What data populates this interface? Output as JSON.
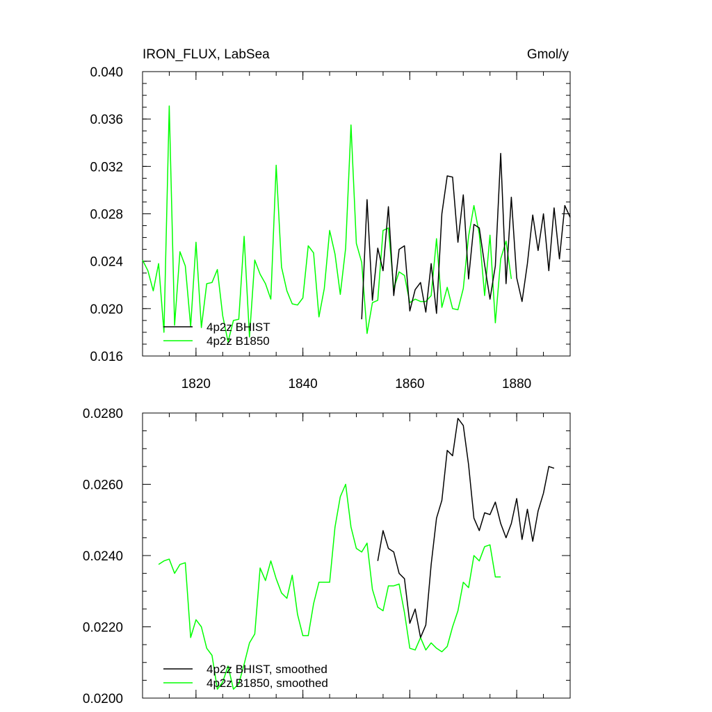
{
  "colors": {
    "bhist": "#000000",
    "b1850": "#00ff00",
    "frame": "#000000"
  },
  "chart_data": [
    {
      "type": "line",
      "title": "IRON_FLUX, LabSea",
      "units": "Gmol/y",
      "xlim": [
        1810,
        1890
      ],
      "ylim": [
        0.016,
        0.04
      ],
      "x_ticks": [
        1820,
        1840,
        1860,
        1880
      ],
      "x_tick_labels": [
        "1820",
        "1840",
        "1860",
        "1880"
      ],
      "y_ticks": [
        0.016,
        0.02,
        0.024,
        0.028,
        0.032,
        0.036,
        0.04
      ],
      "y_tick_labels": [
        "0.016",
        "0.020",
        "0.024",
        "0.028",
        "0.032",
        "0.036",
        "0.040"
      ],
      "legend_position": "bottom-left",
      "series": [
        {
          "name": "4p2z BHIST",
          "color": "#000000",
          "x": [
            1851,
            1852,
            1853,
            1854,
            1855,
            1856,
            1857,
            1858,
            1859,
            1860,
            1861,
            1862,
            1863,
            1864,
            1865,
            1866,
            1867,
            1868,
            1869,
            1870,
            1871,
            1872,
            1873,
            1874,
            1875,
            1876,
            1877,
            1878,
            1879,
            1880,
            1881,
            1882,
            1883,
            1884,
            1885,
            1886,
            1887,
            1888,
            1889,
            1890
          ],
          "y": [
            0.0191,
            0.0292,
            0.0207,
            0.0251,
            0.0232,
            0.0286,
            0.0211,
            0.025,
            0.0253,
            0.0198,
            0.0216,
            0.0222,
            0.0197,
            0.0238,
            0.0196,
            0.028,
            0.0312,
            0.0311,
            0.0256,
            0.0296,
            0.0225,
            0.0271,
            0.0268,
            0.0237,
            0.0208,
            0.0236,
            0.0331,
            0.0221,
            0.0294,
            0.0226,
            0.0206,
            0.0238,
            0.0279,
            0.0249,
            0.028,
            0.0232,
            0.0285,
            0.0242,
            0.0287,
            0.0277
          ]
        },
        {
          "name": "4p2z B1850",
          "color": "#00ff00",
          "x": [
            1810,
            1811,
            1812,
            1813,
            1814,
            1815,
            1816,
            1817,
            1818,
            1819,
            1820,
            1821,
            1822,
            1823,
            1824,
            1825,
            1826,
            1827,
            1828,
            1829,
            1830,
            1831,
            1832,
            1833,
            1834,
            1835,
            1836,
            1837,
            1838,
            1839,
            1840,
            1841,
            1842,
            1843,
            1844,
            1845,
            1846,
            1847,
            1848,
            1849,
            1850,
            1851,
            1852,
            1853,
            1854,
            1855,
            1856,
            1857,
            1858,
            1859,
            1860,
            1861,
            1862,
            1863,
            1864,
            1865,
            1866,
            1867,
            1868,
            1869,
            1870,
            1871,
            1872,
            1873,
            1874,
            1875,
            1876,
            1877,
            1878,
            1879
          ],
          "y": [
            0.0241,
            0.0232,
            0.0215,
            0.0238,
            0.018,
            0.0371,
            0.0186,
            0.0248,
            0.0236,
            0.0185,
            0.0256,
            0.0184,
            0.0221,
            0.0222,
            0.0233,
            0.0194,
            0.0172,
            0.019,
            0.0191,
            0.0261,
            0.0176,
            0.0241,
            0.0229,
            0.0221,
            0.0208,
            0.0321,
            0.0235,
            0.0215,
            0.0204,
            0.0203,
            0.0209,
            0.0253,
            0.0247,
            0.0193,
            0.0217,
            0.0266,
            0.0246,
            0.0212,
            0.0251,
            0.0355,
            0.0255,
            0.0239,
            0.0179,
            0.0205,
            0.0207,
            0.0266,
            0.0268,
            0.0217,
            0.0231,
            0.0228,
            0.0205,
            0.0208,
            0.0206,
            0.0206,
            0.0211,
            0.0259,
            0.0201,
            0.0218,
            0.02,
            0.0199,
            0.0217,
            0.0261,
            0.0287,
            0.0263,
            0.0211,
            0.0262,
            0.0188,
            0.0242,
            0.0257,
            0.0225
          ]
        }
      ]
    },
    {
      "type": "line",
      "xlim": [
        1810,
        1890
      ],
      "ylim": [
        0.02,
        0.028
      ],
      "x_ticks": [
        1820,
        1840,
        1860,
        1880
      ],
      "y_ticks": [
        0.02,
        0.022,
        0.024,
        0.026,
        0.028
      ],
      "y_tick_labels": [
        "0.0200",
        "0.0220",
        "0.0240",
        "0.0260",
        "0.0280"
      ],
      "legend_position": "bottom-left",
      "series": [
        {
          "name": "4p2z BHIST, smoothed",
          "color": "#000000",
          "x": [
            1854,
            1855,
            1856,
            1857,
            1858,
            1859,
            1860,
            1861,
            1862,
            1863,
            1864,
            1865,
            1866,
            1867,
            1868,
            1869,
            1870,
            1871,
            1872,
            1873,
            1874,
            1875,
            1876,
            1877,
            1878,
            1879,
            1880,
            1881,
            1882,
            1883,
            1884,
            1885,
            1886,
            1887
          ],
          "y": [
            0.02385,
            0.0247,
            0.0242,
            0.0241,
            0.0235,
            0.02335,
            0.0221,
            0.0225,
            0.0217,
            0.02205,
            0.02375,
            0.02505,
            0.02555,
            0.02695,
            0.0268,
            0.02785,
            0.02765,
            0.02655,
            0.02505,
            0.0247,
            0.0252,
            0.02515,
            0.0255,
            0.0249,
            0.0245,
            0.0249,
            0.0256,
            0.02445,
            0.0253,
            0.0244,
            0.02525,
            0.02575,
            0.0265,
            0.02645
          ]
        },
        {
          "name": "4p2z B1850, smoothed",
          "color": "#00ff00",
          "x": [
            1813,
            1814,
            1815,
            1816,
            1817,
            1818,
            1819,
            1820,
            1821,
            1822,
            1823,
            1824,
            1825,
            1826,
            1827,
            1828,
            1829,
            1830,
            1831,
            1832,
            1833,
            1834,
            1835,
            1836,
            1837,
            1838,
            1839,
            1840,
            1841,
            1842,
            1843,
            1844,
            1845,
            1846,
            1847,
            1848,
            1849,
            1850,
            1851,
            1852,
            1853,
            1854,
            1855,
            1856,
            1857,
            1858,
            1859,
            1860,
            1861,
            1862,
            1863,
            1864,
            1865,
            1866,
            1867,
            1868,
            1869,
            1870,
            1871,
            1872,
            1873,
            1874,
            1875,
            1876,
            1877
          ],
          "y": [
            0.02375,
            0.02385,
            0.0239,
            0.0235,
            0.02375,
            0.0238,
            0.0217,
            0.0222,
            0.022,
            0.0214,
            0.0212,
            0.02025,
            0.02045,
            0.0209,
            0.02025,
            0.0204,
            0.02095,
            0.02155,
            0.0218,
            0.02365,
            0.0233,
            0.02385,
            0.02335,
            0.02295,
            0.0228,
            0.02345,
            0.02235,
            0.02175,
            0.02175,
            0.02265,
            0.02325,
            0.02325,
            0.02325,
            0.0248,
            0.02565,
            0.026,
            0.0248,
            0.0242,
            0.0241,
            0.02435,
            0.02305,
            0.02255,
            0.02245,
            0.02315,
            0.02315,
            0.0232,
            0.0224,
            0.0214,
            0.02135,
            0.0217,
            0.02135,
            0.02155,
            0.0214,
            0.0213,
            0.02145,
            0.022,
            0.02245,
            0.02325,
            0.0231,
            0.024,
            0.02385,
            0.02425,
            0.0243,
            0.0234,
            0.0234
          ]
        }
      ]
    }
  ]
}
